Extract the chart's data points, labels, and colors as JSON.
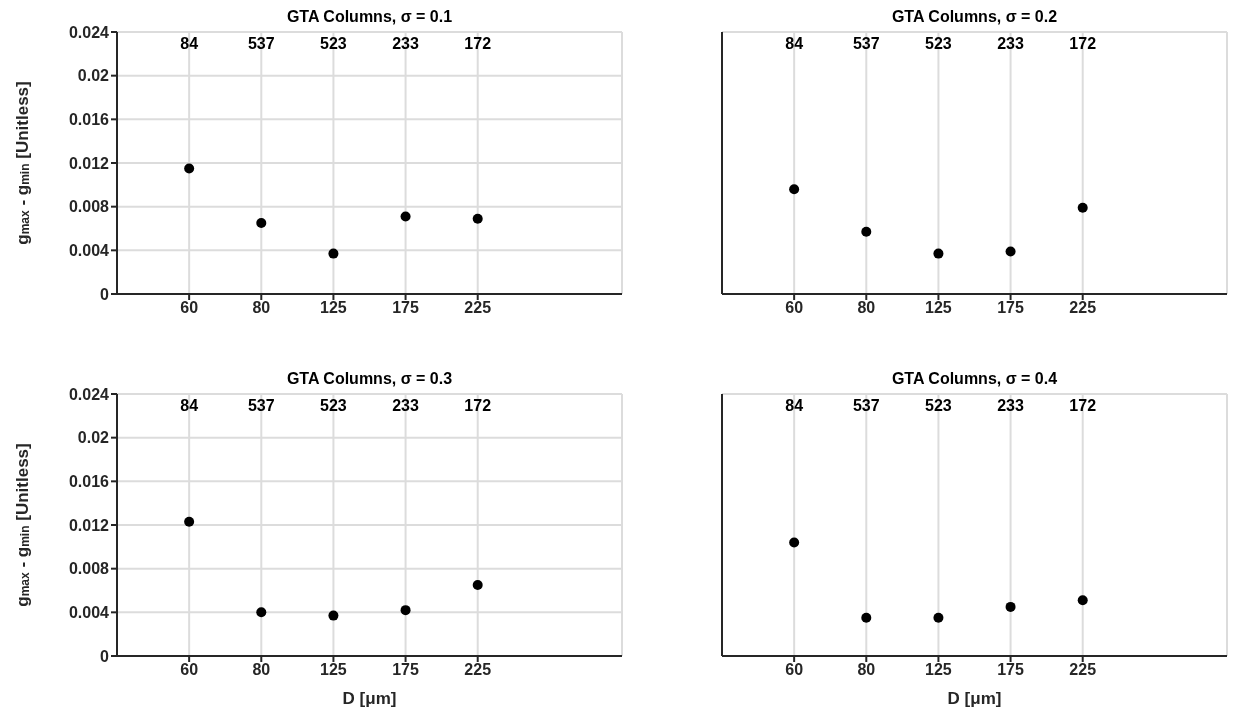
{
  "chart_data": [
    {
      "type": "scatter",
      "title": "GTA Columns, σ = 0.1",
      "ylabel": "g$_{max}$ - g$_{min}$ [Unitless]",
      "categories": [
        "60",
        "80",
        "125",
        "175",
        "225"
      ],
      "values": [
        0.0115,
        0.0065,
        0.0037,
        0.0071,
        0.0069
      ],
      "color": "#000000",
      "marker": "circle",
      "ylim": [
        0,
        0.024
      ],
      "yticks": [
        0,
        0.004,
        0.008,
        0.012,
        0.016,
        0.02,
        0.024
      ],
      "grid": true,
      "annotations": [
        "84",
        "537",
        "523",
        "233",
        "172"
      ]
    },
    {
      "type": "scatter",
      "title": "GTA Columns, σ = 0.2",
      "categories": [
        "60",
        "80",
        "125",
        "175",
        "225"
      ],
      "values": [
        0.0096,
        0.0057,
        0.0037,
        0.0039,
        0.0079
      ],
      "color": "#000000",
      "marker": "circle",
      "ylim": [
        0,
        0.024
      ],
      "yticks": [
        0,
        0.004,
        0.008,
        0.012,
        0.016,
        0.02,
        0.024
      ],
      "grid": true,
      "tick_labels": "x",
      "annotations": [
        "84",
        "537",
        "523",
        "233",
        "172"
      ]
    },
    {
      "type": "scatter",
      "title": "GTA Columns, σ = 0.3",
      "xlabel": "D [μm]",
      "ylabel": "g$_{max}$ - g$_{min}$ [Unitless]",
      "categories": [
        "60",
        "80",
        "125",
        "175",
        "225"
      ],
      "values": [
        0.0123,
        0.004,
        0.0037,
        0.0042,
        0.0065
      ],
      "color": "#000000",
      "marker": "circle",
      "ylim": [
        0,
        0.024
      ],
      "yticks": [
        0,
        0.004,
        0.008,
        0.012,
        0.016,
        0.02,
        0.024
      ],
      "grid": true,
      "annotations": [
        "84",
        "537",
        "523",
        "233",
        "172"
      ]
    },
    {
      "type": "scatter",
      "title": "GTA Columns, σ = 0.4",
      "xlabel": "D [μm]",
      "categories": [
        "60",
        "80",
        "125",
        "175",
        "225"
      ],
      "values": [
        0.0104,
        0.0035,
        0.0035,
        0.0045,
        0.0051
      ],
      "color": "#000000",
      "marker": "circle",
      "ylim": [
        0,
        0.024
      ],
      "yticks": [
        0,
        0.004,
        0.008,
        0.012,
        0.016,
        0.02,
        0.024
      ],
      "grid": true,
      "tick_labels": "x",
      "annotations": [
        "84",
        "537",
        "523",
        "233",
        "172"
      ]
    }
  ]
}
